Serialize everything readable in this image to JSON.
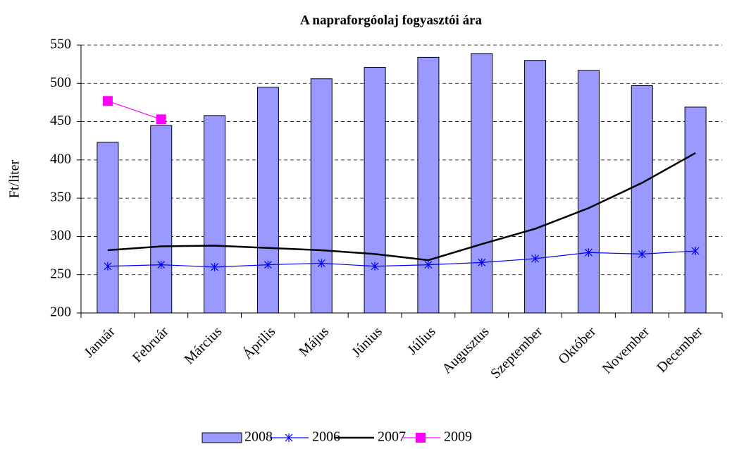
{
  "chart_data": {
    "type": "bar",
    "title": "A napraforgóolaj fogyasztói ára",
    "ylabel": "Ft/liter",
    "categories": [
      "Január",
      "Február",
      "Március",
      "Április",
      "Május",
      "Június",
      "Július",
      "Augusztus",
      "Szeptember",
      "Október",
      "November",
      "December"
    ],
    "series": [
      {
        "name": "2008",
        "type": "bar",
        "color": "#9999ff",
        "values": [
          423,
          445,
          458,
          495,
          506,
          521,
          534,
          539,
          530,
          517,
          497,
          469
        ]
      },
      {
        "name": "2006",
        "type": "line",
        "marker": "star",
        "color": "#0000ff",
        "values": [
          261,
          263,
          260,
          263,
          265,
          261,
          263,
          266,
          271,
          279,
          277,
          281
        ]
      },
      {
        "name": "2007",
        "type": "line",
        "color": "#000000",
        "values": [
          282,
          287,
          288,
          285,
          282,
          277,
          269,
          290,
          310,
          337,
          370,
          409
        ]
      },
      {
        "name": "2009",
        "type": "line",
        "marker": "square",
        "color": "#ff00ff",
        "values": [
          477,
          453,
          null,
          null,
          null,
          null,
          null,
          null,
          null,
          null,
          null,
          null
        ]
      }
    ],
    "ylim": [
      200,
      550
    ],
    "yticks": [
      200,
      250,
      300,
      350,
      400,
      450,
      500,
      550
    ],
    "grid": true,
    "legend": "bottom"
  }
}
